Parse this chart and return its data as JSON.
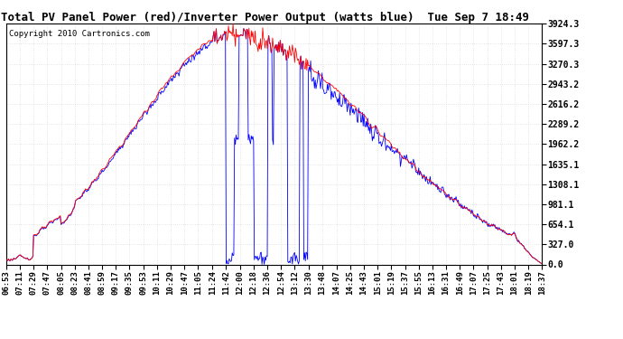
{
  "title": "Total PV Panel Power (red)/Inverter Power Output (watts blue)  Tue Sep 7 18:49",
  "copyright": "Copyright 2010 Cartronics.com",
  "yticks": [
    0.0,
    327.0,
    654.1,
    981.1,
    1308.1,
    1635.1,
    1962.2,
    2289.2,
    2616.2,
    2943.2,
    3270.3,
    3597.3,
    3924.3
  ],
  "xtick_labels": [
    "06:53",
    "07:11",
    "07:29",
    "07:47",
    "08:05",
    "08:23",
    "08:41",
    "08:59",
    "09:17",
    "09:35",
    "09:53",
    "10:11",
    "10:29",
    "10:47",
    "11:05",
    "11:24",
    "11:42",
    "12:00",
    "12:18",
    "12:36",
    "12:54",
    "13:12",
    "13:30",
    "13:48",
    "14:07",
    "14:25",
    "14:43",
    "15:01",
    "15:19",
    "15:37",
    "15:55",
    "16:13",
    "16:31",
    "16:49",
    "17:07",
    "17:25",
    "17:43",
    "18:01",
    "18:19",
    "18:37"
  ],
  "ymax": 3924.3,
  "ymin": 0.0,
  "bg_color": "#ffffff",
  "grid_color": "#aaaaaa",
  "panel_color": "red",
  "inverter_color": "blue",
  "title_fontsize": 9,
  "copyright_fontsize": 6.5
}
